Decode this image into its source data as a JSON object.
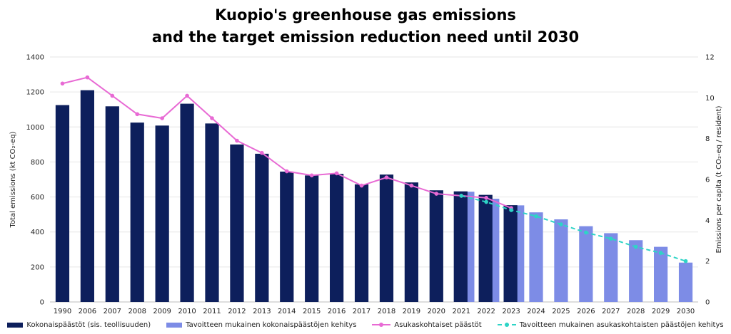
{
  "chart_data": {
    "type": "bar",
    "title_line1": "Kuopio's greenhouse gas emissions",
    "title_line2": "and the target emission reduction need until 2030",
    "ylabel_left": "Total emissions (kt CO₂-eq)",
    "ylabel_right": "Emissions per capita (t CO₂-eq / resident)",
    "ylim_left": [
      0,
      1400
    ],
    "ylim_right": [
      0,
      12
    ],
    "yticks_left": [
      "0",
      "200",
      "400",
      "600",
      "800",
      "1000",
      "1200",
      "1400"
    ],
    "yticks_right": [
      "0",
      "2",
      "4",
      "6",
      "8",
      "10",
      "12"
    ],
    "grid": true,
    "legend_position": "bottom",
    "categories": [
      "1990",
      "2006",
      "2007",
      "2008",
      "2009",
      "2010",
      "2011",
      "2012",
      "2013",
      "2014",
      "2015",
      "2016",
      "2017",
      "2018",
      "2019",
      "2020",
      "2021",
      "2022",
      "2023",
      "2024",
      "2025",
      "2026",
      "2027",
      "2028",
      "2029",
      "2030"
    ],
    "series": [
      {
        "name": "Kokonaispäästöt (sis. teollisuuden)",
        "kind": "bar",
        "axis": "left",
        "color": "#0d1f5c",
        "values": [
          1125,
          1210,
          1118,
          1025,
          1008,
          1133,
          1020,
          900,
          847,
          745,
          723,
          732,
          672,
          728,
          683,
          638,
          632,
          612,
          553,
          null,
          null,
          null,
          null,
          null,
          null,
          null
        ]
      },
      {
        "name": "Tavoitteen mukainen kokonaispäästöjen kehitys",
        "kind": "bar",
        "axis": "left",
        "color": "#7d8ce6",
        "values": [
          null,
          null,
          null,
          null,
          null,
          null,
          null,
          null,
          null,
          null,
          null,
          null,
          null,
          null,
          null,
          null,
          630,
          590,
          552,
          512,
          472,
          433,
          393,
          353,
          315,
          225
        ]
      },
      {
        "name": "Asukaskohtaiset päästöt",
        "kind": "line",
        "axis": "right",
        "color": "#e86ad4",
        "values": [
          10.7,
          11.0,
          10.1,
          9.2,
          9.0,
          10.1,
          9.0,
          7.9,
          7.3,
          6.4,
          6.2,
          6.3,
          5.7,
          6.1,
          5.7,
          5.3,
          5.2,
          5.1,
          4.6,
          null,
          null,
          null,
          null,
          null,
          null,
          null
        ]
      },
      {
        "name": "Tavoitteen mukainen asukaskohtaisten päästöjen kehitys",
        "kind": "dashed-line",
        "axis": "right",
        "color": "#2ed4c6",
        "values": [
          null,
          null,
          null,
          null,
          null,
          null,
          null,
          null,
          null,
          null,
          null,
          null,
          null,
          null,
          null,
          null,
          5.2,
          4.9,
          4.5,
          4.2,
          3.8,
          3.4,
          3.1,
          2.7,
          2.4,
          2.0
        ]
      }
    ]
  }
}
